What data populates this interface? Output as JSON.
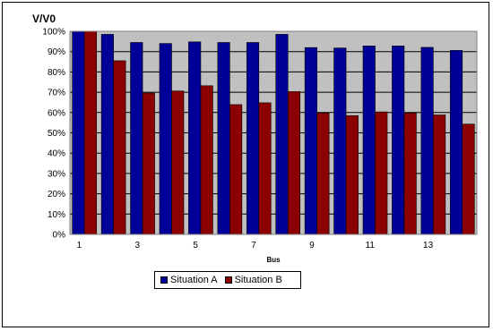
{
  "chart_data": {
    "type": "bar",
    "title": "",
    "ylabel": "V/V0",
    "xlabel": "Bus",
    "ylim": [
      0,
      1
    ],
    "y_ticks": [
      "0%",
      "10%",
      "20%",
      "30%",
      "40%",
      "50%",
      "60%",
      "70%",
      "80%",
      "90%",
      "100%"
    ],
    "categories": [
      "1",
      "2",
      "3",
      "4",
      "5",
      "6",
      "7",
      "8",
      "9",
      "10",
      "11",
      "12",
      "13",
      "14"
    ],
    "x_tick_labels": [
      "1",
      "",
      "3",
      "",
      "5",
      "",
      "7",
      "",
      "9",
      "",
      "11",
      "",
      "13",
      ""
    ],
    "grid": true,
    "legend_position": "bottom",
    "series": [
      {
        "name": "Situation A",
        "color": "#000099",
        "values": [
          1.0,
          0.985,
          0.945,
          0.94,
          0.948,
          0.945,
          0.945,
          0.985,
          0.92,
          0.918,
          0.928,
          0.928,
          0.921,
          0.906
        ]
      },
      {
        "name": "Situation B",
        "color": "#8b0000",
        "values": [
          1.0,
          0.855,
          0.696,
          0.706,
          0.732,
          0.639,
          0.648,
          0.703,
          0.598,
          0.585,
          0.603,
          0.598,
          0.588,
          0.543
        ]
      }
    ],
    "plot_background": "#c0c0c0"
  }
}
